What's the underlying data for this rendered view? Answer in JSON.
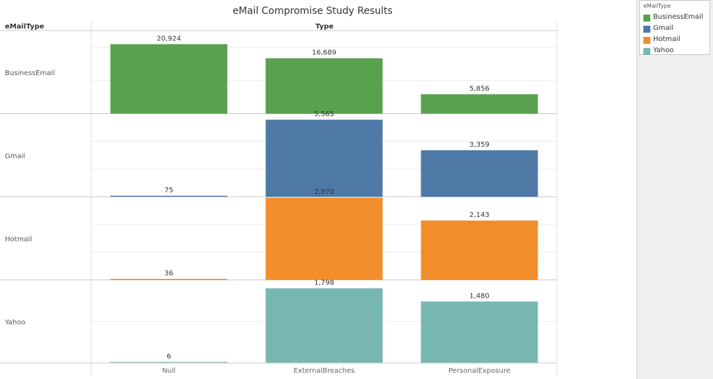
{
  "chart_data": {
    "type": "bar",
    "title": "eMail Compromise Study Results",
    "row_header": "eMailType",
    "column_header": "Type",
    "categories": [
      "Null",
      "ExternalBreaches",
      "PersonalExposure"
    ],
    "rows": [
      "BusinessEmail",
      "Gmail",
      "Hotmail",
      "Yahoo"
    ],
    "series": [
      {
        "name": "BusinessEmail",
        "values": [
          20924,
          16689,
          5856
        ],
        "labels": [
          "20,924",
          "16,689",
          "5,856"
        ],
        "ylim": [
          0,
          25000
        ],
        "grid": [
          10000,
          20000
        ]
      },
      {
        "name": "Gmail",
        "values": [
          75,
          5565,
          3359
        ],
        "labels": [
          "75",
          "5,565",
          "3,359"
        ],
        "ylim": [
          0,
          6000
        ],
        "grid": [
          2000,
          4000
        ]
      },
      {
        "name": "Hotmail",
        "values": [
          36,
          2970,
          2143
        ],
        "labels": [
          "36",
          "2,970",
          "2,143"
        ],
        "ylim": [
          0,
          3000
        ],
        "grid": [
          1000,
          2000
        ]
      },
      {
        "name": "Yahoo",
        "values": [
          6,
          1798,
          1480
        ],
        "labels": [
          "6",
          "1,798",
          "1,480"
        ],
        "ylim": [
          0,
          2000
        ],
        "grid": [
          1000
        ]
      }
    ],
    "legend": {
      "title": "eMailType",
      "position": "top-right",
      "items": [
        "BusinessEmail",
        "Gmail",
        "Hotmail",
        "Yahoo"
      ]
    },
    "colors": {
      "BusinessEmail": "#59a14f",
      "Gmail": "#4e79a7",
      "Hotmail": "#f28e2b",
      "Yahoo": "#76b7b2"
    }
  }
}
